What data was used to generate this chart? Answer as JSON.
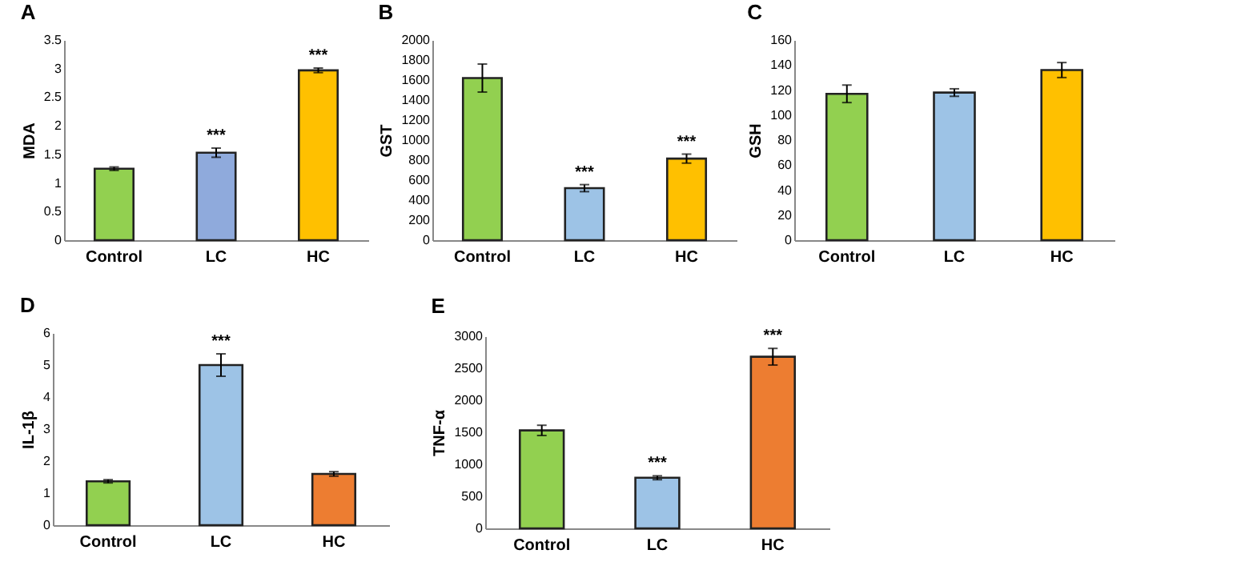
{
  "chart_data": [
    {
      "type": "bar",
      "title": "A",
      "ylabel": "MDA",
      "categories": [
        "Control",
        "LC",
        "HC"
      ],
      "values": [
        1.25,
        1.53,
        2.97
      ],
      "errors": [
        0.03,
        0.08,
        0.04
      ],
      "colors": [
        "#92d050",
        "#8faadc",
        "#ffc000"
      ],
      "ylim": [
        0,
        3.5
      ],
      "yticks": [
        0,
        0.5,
        1,
        1.5,
        2,
        2.5,
        3,
        3.5
      ],
      "annotations": [
        {
          "text": "***",
          "x": "LC",
          "y": 1.61
        },
        {
          "text": "***",
          "x": "HC",
          "y": 3.01
        }
      ]
    },
    {
      "type": "bar",
      "title": "B",
      "ylabel": "GST",
      "categories": [
        "Control",
        "LC",
        "HC"
      ],
      "values": [
        1620,
        520,
        815
      ],
      "errors": [
        140,
        35,
        45
      ],
      "colors": [
        "#92d050",
        "#9dc3e6",
        "#ffc000"
      ],
      "ylim": [
        0,
        2000
      ],
      "yticks": [
        0,
        200,
        400,
        600,
        800,
        1000,
        1200,
        1400,
        1600,
        1800,
        2000
      ],
      "annotations": [
        {
          "text": "***",
          "x": "LC",
          "y": 555
        },
        {
          "text": "***",
          "x": "HC",
          "y": 860
        }
      ]
    },
    {
      "type": "bar",
      "title": "C",
      "ylabel": "GSH",
      "categories": [
        "Control",
        "LC",
        "HC"
      ],
      "values": [
        117,
        118,
        136
      ],
      "errors": [
        7,
        3,
        6
      ],
      "colors": [
        "#92d050",
        "#9dc3e6",
        "#ffc000"
      ],
      "ylim": [
        0,
        160
      ],
      "yticks": [
        0,
        20,
        40,
        60,
        80,
        100,
        120,
        140,
        160
      ]
    },
    {
      "type": "bar",
      "title": "D",
      "ylabel": "IL-1β",
      "categories": [
        "Control",
        "LC",
        "HC"
      ],
      "values": [
        1.37,
        5.0,
        1.6
      ],
      "errors": [
        0.05,
        0.35,
        0.07
      ],
      "colors": [
        "#92d050",
        "#9dc3e6",
        "#ed7d31"
      ],
      "ylim": [
        0,
        6
      ],
      "yticks": [
        0,
        1,
        2,
        3,
        4,
        5,
        6
      ],
      "annotations": [
        {
          "text": "***",
          "x": "LC",
          "y": 5.35
        }
      ]
    },
    {
      "type": "bar",
      "title": "E",
      "ylabel": "TNF-α",
      "categories": [
        "Control",
        "LC",
        "HC"
      ],
      "values": [
        1530,
        790,
        2680
      ],
      "errors": [
        80,
        30,
        130
      ],
      "colors": [
        "#92d050",
        "#9dc3e6",
        "#ed7d31"
      ],
      "ylim": [
        0,
        3000
      ],
      "yticks": [
        0,
        500,
        1000,
        1500,
        2000,
        2500,
        3000
      ],
      "annotations": [
        {
          "text": "***",
          "x": "LC",
          "y": 820
        },
        {
          "text": "***",
          "x": "HC",
          "y": 2810
        }
      ]
    }
  ]
}
